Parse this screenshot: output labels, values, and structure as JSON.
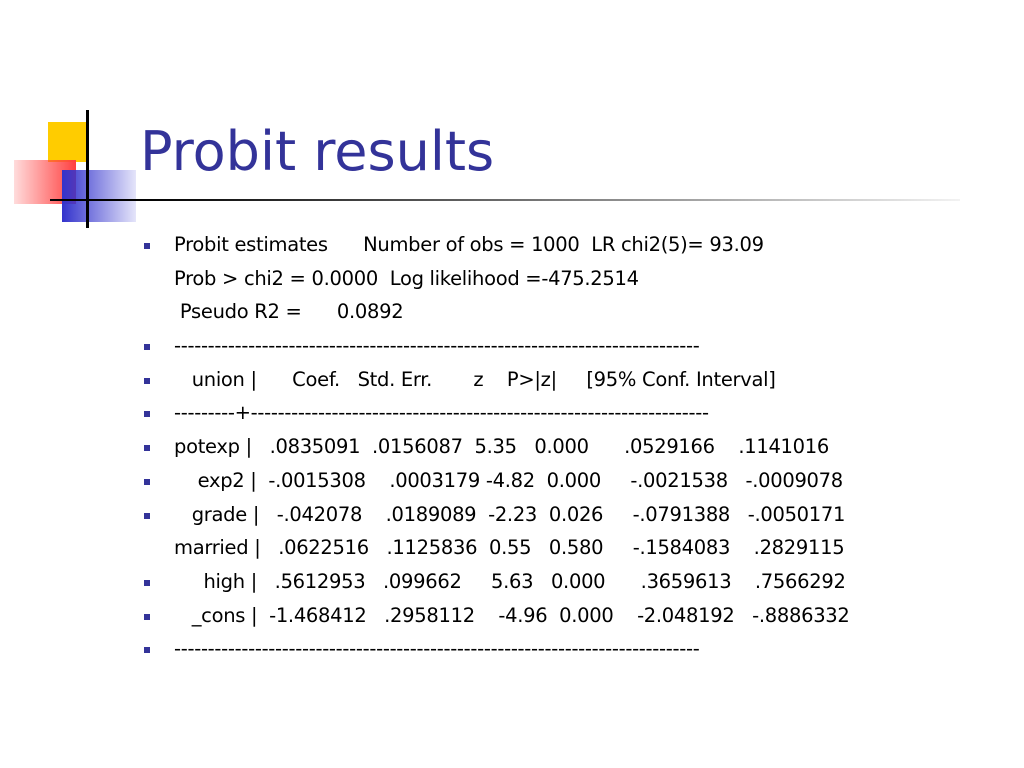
{
  "title": "Probit results",
  "lines": [
    {
      "bullet": true,
      "text": "Probit estimates      Number of obs = 1000  LR chi2(5)= 93.09"
    },
    {
      "bullet": false,
      "text": "Prob > chi2 = 0.0000  Log likelihood =-475.2514"
    },
    {
      "bullet": false,
      "text": " Pseudo R2 =      0.0892"
    },
    {
      "bullet": true,
      "text": "------------------------------------------------------------------------------"
    },
    {
      "bullet": true,
      "text": "   union |      Coef.   Std. Err.       z    P>|z|     [95% Conf. Interval]"
    },
    {
      "bullet": true,
      "text": "---------+--------------------------------------------------------------------"
    },
    {
      "bullet": true,
      "text": "potexp |   .0835091  .0156087  5.35   0.000      .0529166    .1141016"
    },
    {
      "bullet": true,
      "text": "    exp2 |  -.0015308    .0003179 -4.82  0.000     -.0021538   -.0009078"
    },
    {
      "bullet": true,
      "text": "   grade |   -.042078    .0189089  -2.23  0.026     -.0791388   -.0050171"
    },
    {
      "bullet": false,
      "text": "married |   .0622516   .1125836  0.55   0.580     -.1584083    .2829115"
    },
    {
      "bullet": true,
      "text": "     high |   .5612953   .099662     5.63   0.000      .3659613    .7566292"
    },
    {
      "bullet": true,
      "text": "   _cons |  -1.468412   .2958112    -4.96  0.000    -2.048192   -.8886332"
    },
    {
      "bullet": true,
      "text": "------------------------------------------------------------------------------"
    }
  ]
}
